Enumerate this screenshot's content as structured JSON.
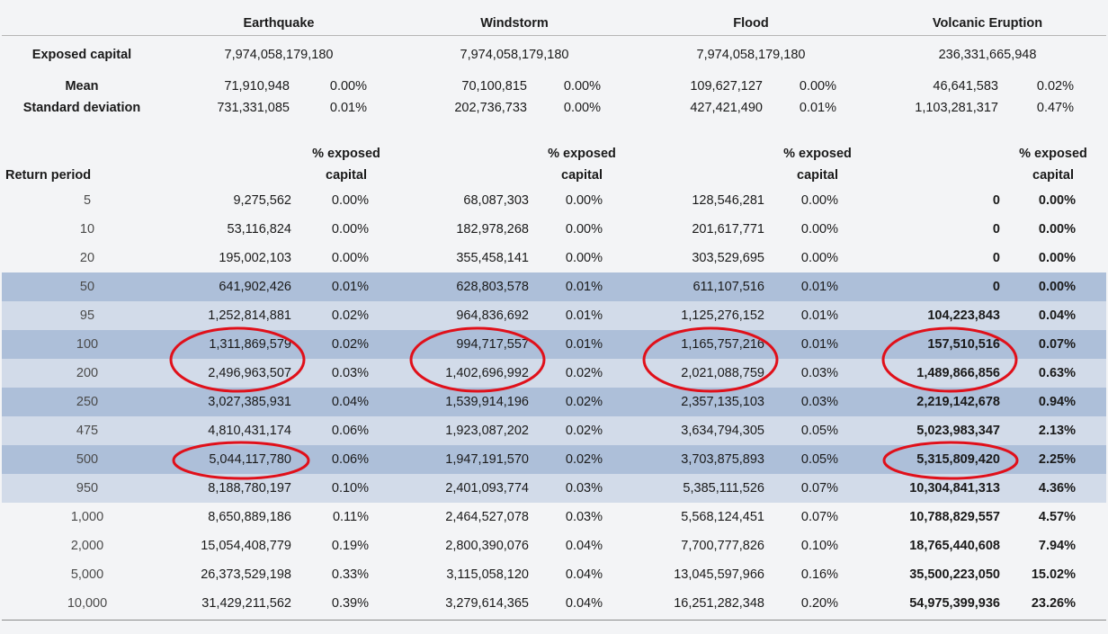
{
  "hazards": [
    "Earthquake",
    "Windstorm",
    "Flood",
    "Volcanic Eruption"
  ],
  "exposed_capital_label": "Exposed capital",
  "exposed_capital": [
    "7,974,058,179,180",
    "7,974,058,179,180",
    "7,974,058,179,180",
    "236,331,665,948"
  ],
  "mean_label": "Mean",
  "mean": [
    {
      "value": "71,910,948",
      "pct": "0.00%"
    },
    {
      "value": "70,100,815",
      "pct": "0.00%"
    },
    {
      "value": "109,627,127",
      "pct": "0.00%"
    },
    {
      "value": "46,641,583",
      "pct": "0.02%"
    }
  ],
  "std_label": "Standard deviation",
  "std": [
    {
      "value": "731,331,085",
      "pct": "0.01%"
    },
    {
      "value": "202,736,733",
      "pct": "0.00%"
    },
    {
      "value": "427,421,490",
      "pct": "0.01%"
    },
    {
      "value": "1,103,281,317",
      "pct": "0.47%"
    }
  ],
  "return_period_label": "Return period",
  "pct_header_line1": "% exposed",
  "pct_header_line2": "capital",
  "rows": [
    {
      "rp": "5",
      "shade": "plain",
      "vals": [
        "9,275,562",
        "0.00%",
        "68,087,303",
        "0.00%",
        "128,546,281",
        "0.00%",
        "0",
        "0.00%"
      ]
    },
    {
      "rp": "10",
      "shade": "plain",
      "vals": [
        "53,116,824",
        "0.00%",
        "182,978,268",
        "0.00%",
        "201,617,771",
        "0.00%",
        "0",
        "0.00%"
      ]
    },
    {
      "rp": "20",
      "shade": "plain",
      "vals": [
        "195,002,103",
        "0.00%",
        "355,458,141",
        "0.00%",
        "303,529,695",
        "0.00%",
        "0",
        "0.00%"
      ]
    },
    {
      "rp": "50",
      "shade": "dark",
      "vals": [
        "641,902,426",
        "0.01%",
        "628,803,578",
        "0.01%",
        "611,107,516",
        "0.01%",
        "0",
        "0.00%"
      ]
    },
    {
      "rp": "95",
      "shade": "light",
      "vals": [
        "1,252,814,881",
        "0.02%",
        "964,836,692",
        "0.01%",
        "1,125,276,152",
        "0.01%",
        "104,223,843",
        "0.04%"
      ]
    },
    {
      "rp": "100",
      "shade": "dark",
      "vals": [
        "1,311,869,579",
        "0.02%",
        "994,717,557",
        "0.01%",
        "1,165,757,216",
        "0.01%",
        "157,510,516",
        "0.07%"
      ]
    },
    {
      "rp": "200",
      "shade": "light",
      "vals": [
        "2,496,963,507",
        "0.03%",
        "1,402,696,992",
        "0.02%",
        "2,021,088,759",
        "0.03%",
        "1,489,866,856",
        "0.63%"
      ]
    },
    {
      "rp": "250",
      "shade": "dark",
      "vals": [
        "3,027,385,931",
        "0.04%",
        "1,539,914,196",
        "0.02%",
        "2,357,135,103",
        "0.03%",
        "2,219,142,678",
        "0.94%"
      ]
    },
    {
      "rp": "475",
      "shade": "light",
      "vals": [
        "4,810,431,174",
        "0.06%",
        "1,923,087,202",
        "0.02%",
        "3,634,794,305",
        "0.05%",
        "5,023,983,347",
        "2.13%"
      ]
    },
    {
      "rp": "500",
      "shade": "dark",
      "vals": [
        "5,044,117,780",
        "0.06%",
        "1,947,191,570",
        "0.02%",
        "3,703,875,893",
        "0.05%",
        "5,315,809,420",
        "2.25%"
      ]
    },
    {
      "rp": "950",
      "shade": "light",
      "vals": [
        "8,188,780,197",
        "0.10%",
        "2,401,093,774",
        "0.03%",
        "5,385,111,526",
        "0.07%",
        "10,304,841,313",
        "4.36%"
      ]
    },
    {
      "rp": "1,000",
      "shade": "plain",
      "vals": [
        "8,650,889,186",
        "0.11%",
        "2,464,527,078",
        "0.03%",
        "5,568,124,451",
        "0.07%",
        "10,788,829,557",
        "4.57%"
      ]
    },
    {
      "rp": "2,000",
      "shade": "plain",
      "vals": [
        "15,054,408,779",
        "0.19%",
        "2,800,390,076",
        "0.04%",
        "7,700,777,826",
        "0.10%",
        "18,765,440,608",
        "7.94%"
      ]
    },
    {
      "rp": "5,000",
      "shade": "plain",
      "vals": [
        "26,373,529,198",
        "0.33%",
        "3,115,058,120",
        "0.04%",
        "13,045,597,966",
        "0.16%",
        "35,500,223,050",
        "15.02%"
      ]
    },
    {
      "rp": "10,000",
      "shade": "plain",
      "vals": [
        "31,429,211,562",
        "0.39%",
        "3,279,614,365",
        "0.04%",
        "16,251,282,348",
        "0.20%",
        "54,975,399,936",
        "23.26%"
      ]
    }
  ],
  "highlight_color": "#e0101a"
}
